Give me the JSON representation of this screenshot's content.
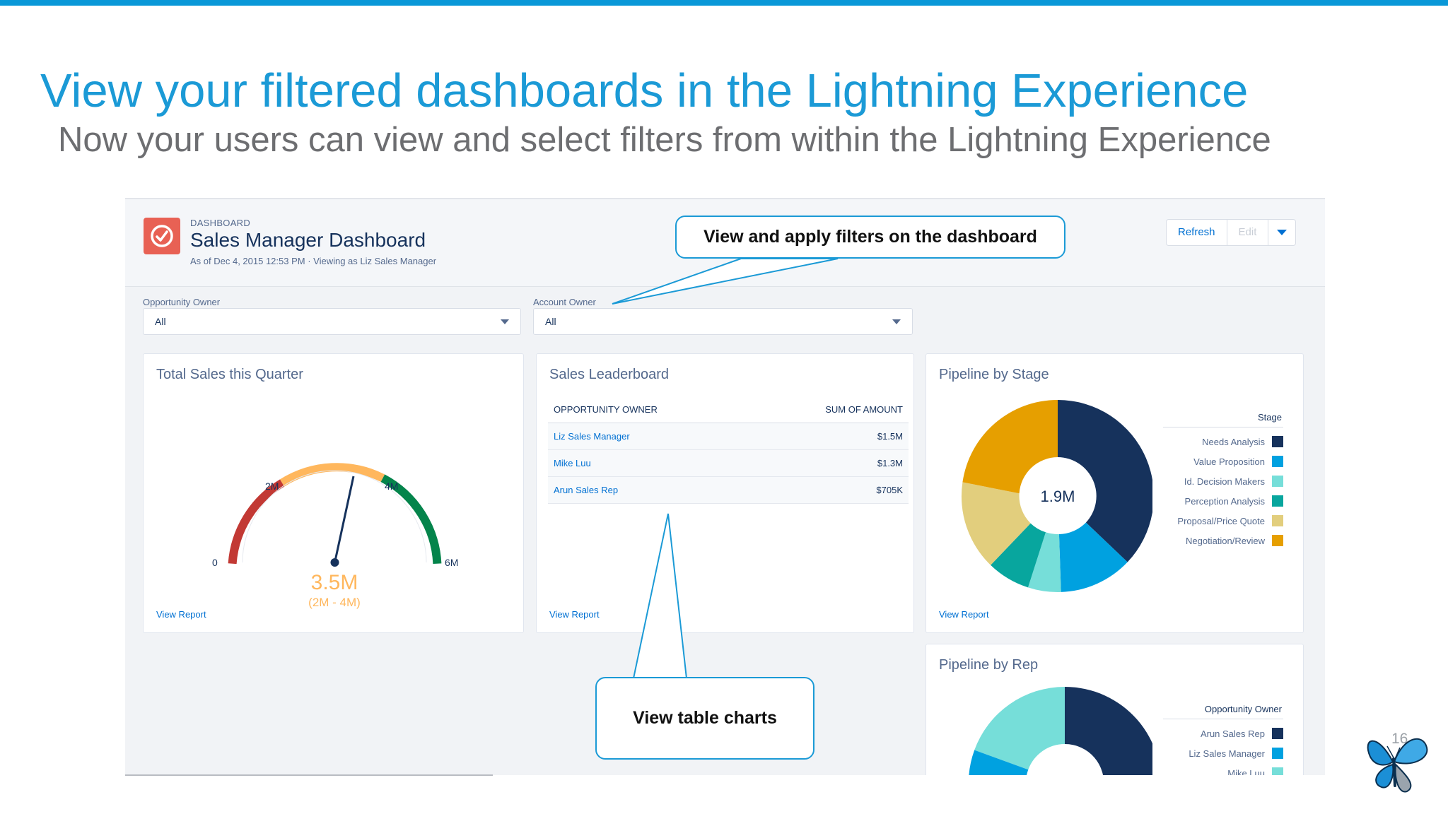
{
  "slide": {
    "title": "View your filtered dashboards in the Lightning Experience",
    "subtitle": "Now your users can view and select filters from within the Lightning Experience",
    "page_number": "16",
    "accent_color": "#1b9ad6"
  },
  "dashboard": {
    "kicker": "DASHBOARD",
    "name": "Sales Manager Dashboard",
    "meta": "As of Dec 4, 2015 12:53 PM · Viewing as Liz Sales Manager",
    "icon": "gauge-icon",
    "buttons": {
      "refresh": "Refresh",
      "edit": "Edit",
      "menu_icon": "caret-down-icon"
    }
  },
  "filters": [
    {
      "label": "Opportunity Owner",
      "value": "All"
    },
    {
      "label": "Account Owner",
      "value": "All"
    }
  ],
  "cards": {
    "gauge": {
      "title": "Total Sales this Quarter",
      "value": "3.5M",
      "range": "(2M - 4M)",
      "ticks": [
        "0",
        "2M",
        "4M",
        "6M"
      ],
      "link": "View Report"
    },
    "leaderboard": {
      "title": "Sales Leaderboard",
      "columns": [
        "OPPORTUNITY OWNER",
        "SUM OF AMOUNT"
      ],
      "rows": [
        {
          "owner": "Liz Sales Manager",
          "amount": "$1.5M"
        },
        {
          "owner": "Mike Luu",
          "amount": "$1.3M"
        },
        {
          "owner": "Arun Sales Rep",
          "amount": "$705K"
        }
      ],
      "link": "View Report"
    },
    "pipeline_stage": {
      "title": "Pipeline by Stage",
      "center": "1.9M",
      "legend_title": "Stage",
      "legend": [
        {
          "label": "Needs Analysis",
          "color": "#16325c"
        },
        {
          "label": "Value Proposition",
          "color": "#00a1e0"
        },
        {
          "label": "Id. Decision Makers",
          "color": "#76ded9"
        },
        {
          "label": "Perception Analysis",
          "color": "#08a69e"
        },
        {
          "label": "Proposal/Price Quote",
          "color": "#e2ce7d"
        },
        {
          "label": "Negotiation/Review",
          "color": "#e69f00"
        }
      ],
      "link": "View Report"
    },
    "pipeline_rep": {
      "title": "Pipeline by Rep",
      "legend_title": "Opportunity Owner",
      "legend": [
        {
          "label": "Arun Sales Rep",
          "color": "#16325c"
        },
        {
          "label": "Liz Sales Manager",
          "color": "#00a1e0"
        },
        {
          "label": "Mike Luu",
          "color": "#76ded9"
        }
      ]
    }
  },
  "callouts": {
    "filters": "View and apply filters on the dashboard",
    "tables": "View table charts"
  }
}
